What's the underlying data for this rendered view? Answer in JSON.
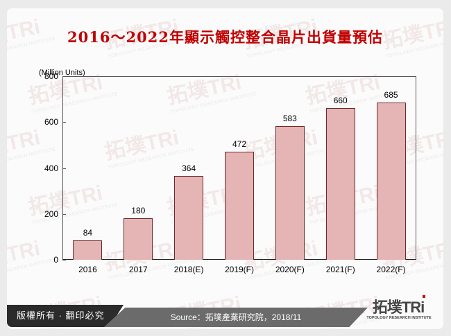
{
  "title": "2016～2022年顯示觸控整合晶片出貨量預估",
  "unit_label": "(Million Units)",
  "footer": {
    "copyright": "版權所有 · 翻印必究",
    "source": "Source：拓墣產業研究院，2018/11",
    "logo_text": "拓墣TRi",
    "logo_subtext": "TOPOLOGY RESEARCH INSTITUTE"
  },
  "watermark": {
    "text": "拓墣TRi",
    "subtext": "TOPOLOGY RESEARCH INSTITUTE"
  },
  "colors": {
    "title": "#c00000",
    "bar_fill": "#e5b4b4",
    "bar_border": "#6b2a2a"
  },
  "chart_data": {
    "type": "bar",
    "title": "2016～2022年顯示觸控整合晶片出貨量預估",
    "xlabel": "",
    "ylabel": "(Million Units)",
    "categories": [
      "2016",
      "2017",
      "2018(E)",
      "2019(F)",
      "2020(F)",
      "2021(F)",
      "2022(F)"
    ],
    "values": [
      84,
      180,
      364,
      472,
      583,
      660,
      685
    ],
    "ylim": [
      0,
      800
    ],
    "yticks": [
      "0",
      "200",
      "400",
      "600",
      "800"
    ],
    "grid": false,
    "legend": "none",
    "data_labels": [
      "84",
      "180",
      "364",
      "472",
      "583",
      "660",
      "685"
    ]
  }
}
